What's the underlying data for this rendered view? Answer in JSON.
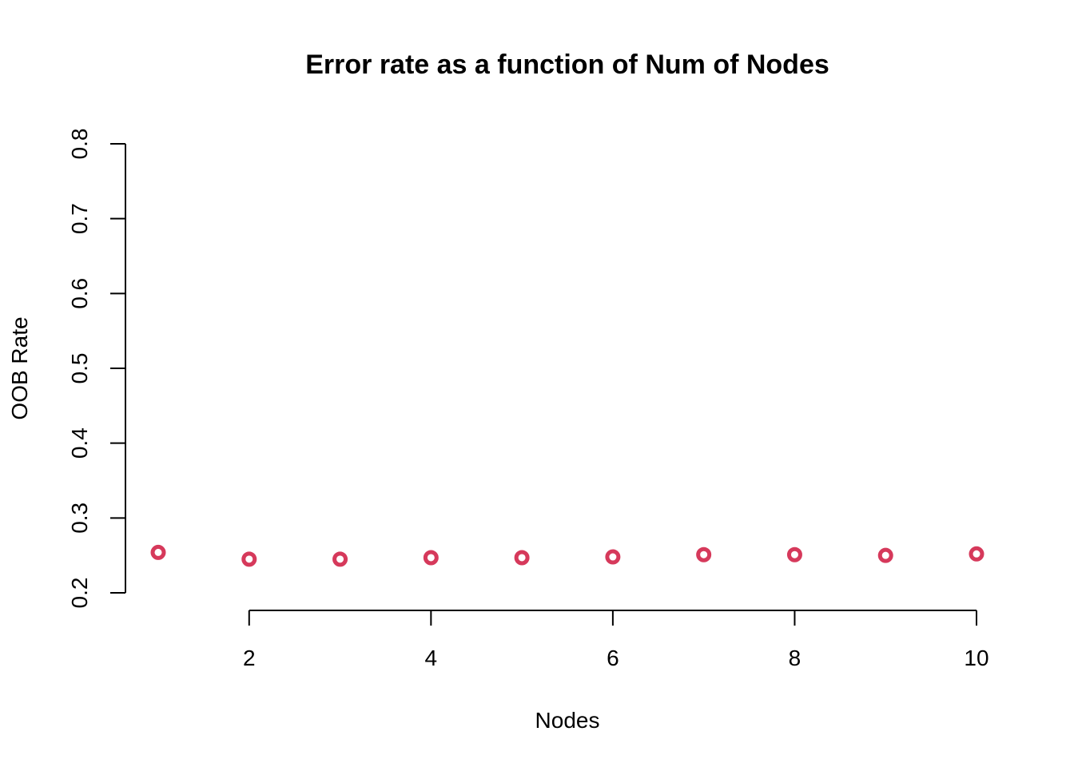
{
  "chart_data": {
    "type": "scatter",
    "title": "Error rate as a function of Num of Nodes",
    "xlabel": "Nodes",
    "ylabel": "OOB Rate",
    "xlim": [
      1,
      10
    ],
    "ylim": [
      0.2,
      0.8
    ],
    "x_ticks": [
      2,
      4,
      6,
      8,
      10
    ],
    "x_tick_labels": [
      "2",
      "4",
      "6",
      "8",
      "10"
    ],
    "y_ticks": [
      0.2,
      0.3,
      0.4,
      0.5,
      0.6,
      0.7,
      0.8
    ],
    "y_tick_labels": [
      "0.2",
      "0.3",
      "0.4",
      "0.5",
      "0.6",
      "0.7",
      "0.8"
    ],
    "grid": false,
    "point_color": "#D6395B",
    "series": [
      {
        "x": [
          1,
          2,
          3,
          4,
          5,
          6,
          7,
          8,
          9,
          10
        ],
        "y": [
          0.254,
          0.245,
          0.245,
          0.247,
          0.247,
          0.248,
          0.251,
          0.251,
          0.25,
          0.252
        ]
      }
    ]
  }
}
